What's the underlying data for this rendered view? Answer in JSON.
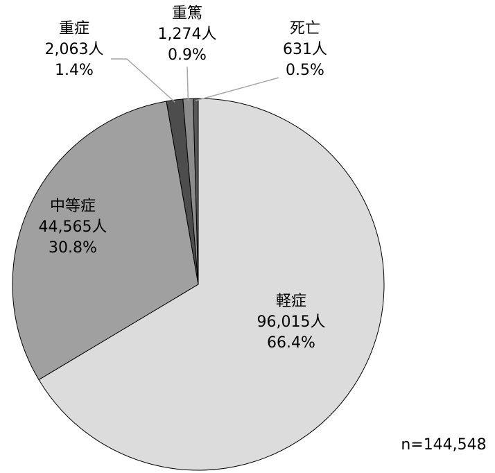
{
  "chart_data": {
    "type": "pie",
    "categories": [
      "軽症",
      "中等症",
      "重症",
      "重篤",
      "死亡"
    ],
    "values": [
      96015,
      44565,
      2063,
      1274,
      631
    ],
    "value_labels": [
      "96,015人",
      "44,565人",
      "2,063人",
      "1,274人",
      "631人"
    ],
    "percent_labels": [
      "66.4%",
      "30.8%",
      "1.4%",
      "0.9%",
      "0.5%"
    ],
    "colors": [
      "#dcdcdc",
      "#a0a0a0",
      "#4d4d4d",
      "#8c8c8c",
      "#595959"
    ],
    "annotation": "n=144,548"
  }
}
